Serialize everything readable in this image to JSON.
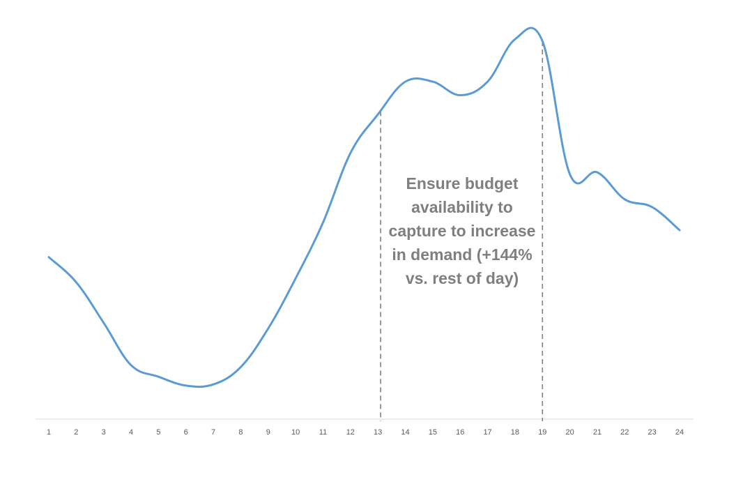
{
  "chart_data": {
    "type": "line",
    "title": "",
    "xlabel": "",
    "ylabel": "",
    "x": [
      1,
      2,
      3,
      4,
      5,
      6,
      7,
      8,
      9,
      10,
      11,
      12,
      13,
      14,
      15,
      16,
      17,
      18,
      19,
      20,
      21,
      22,
      23,
      24
    ],
    "tick_labels": [
      "1",
      "2",
      "3",
      "4",
      "5",
      "6",
      "7",
      "8",
      "9",
      "10",
      "11",
      "12",
      "13",
      "14",
      "15",
      "16",
      "17",
      "18",
      "19",
      "20",
      "21",
      "22",
      "23",
      "24"
    ],
    "series": [
      {
        "name": "",
        "color": "#5b9bd5",
        "values": [
          42,
          35.5,
          25,
          14,
          11,
          8.7,
          9,
          13.5,
          23.5,
          36.5,
          51,
          69,
          79,
          87.5,
          87.5,
          84,
          87.5,
          98.5,
          98,
          63.5,
          64,
          57,
          55,
          49
        ]
      }
    ],
    "ylim": [
      0,
      100
    ],
    "grid": false,
    "legend": "none",
    "axis_color": "#d9d9d9",
    "markers": [
      {
        "x": 13.1,
        "style": "dashed",
        "color": "#7f7f7f"
      },
      {
        "x": 19,
        "style": "dashed",
        "color": "#7f7f7f"
      }
    ],
    "annotation": {
      "text": "Ensure budget availability to capture to increase in demand (+144% vs. rest of day)",
      "color": "#7f7f7f"
    }
  }
}
